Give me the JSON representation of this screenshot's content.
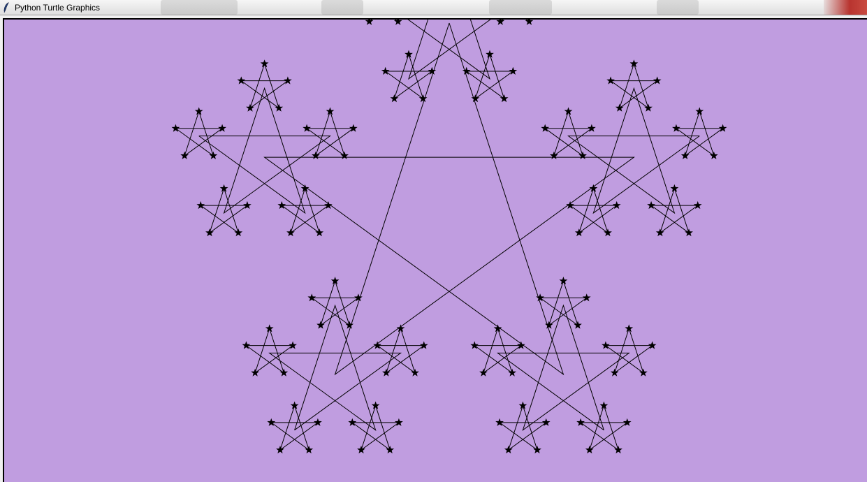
{
  "window": {
    "title": "Python Turtle Graphics",
    "icon": "feather-icon"
  },
  "canvas": {
    "background": "#c09de0",
    "stroke_color": "#000000",
    "drawing": "fractal-star",
    "recursion_levels": 3
  }
}
